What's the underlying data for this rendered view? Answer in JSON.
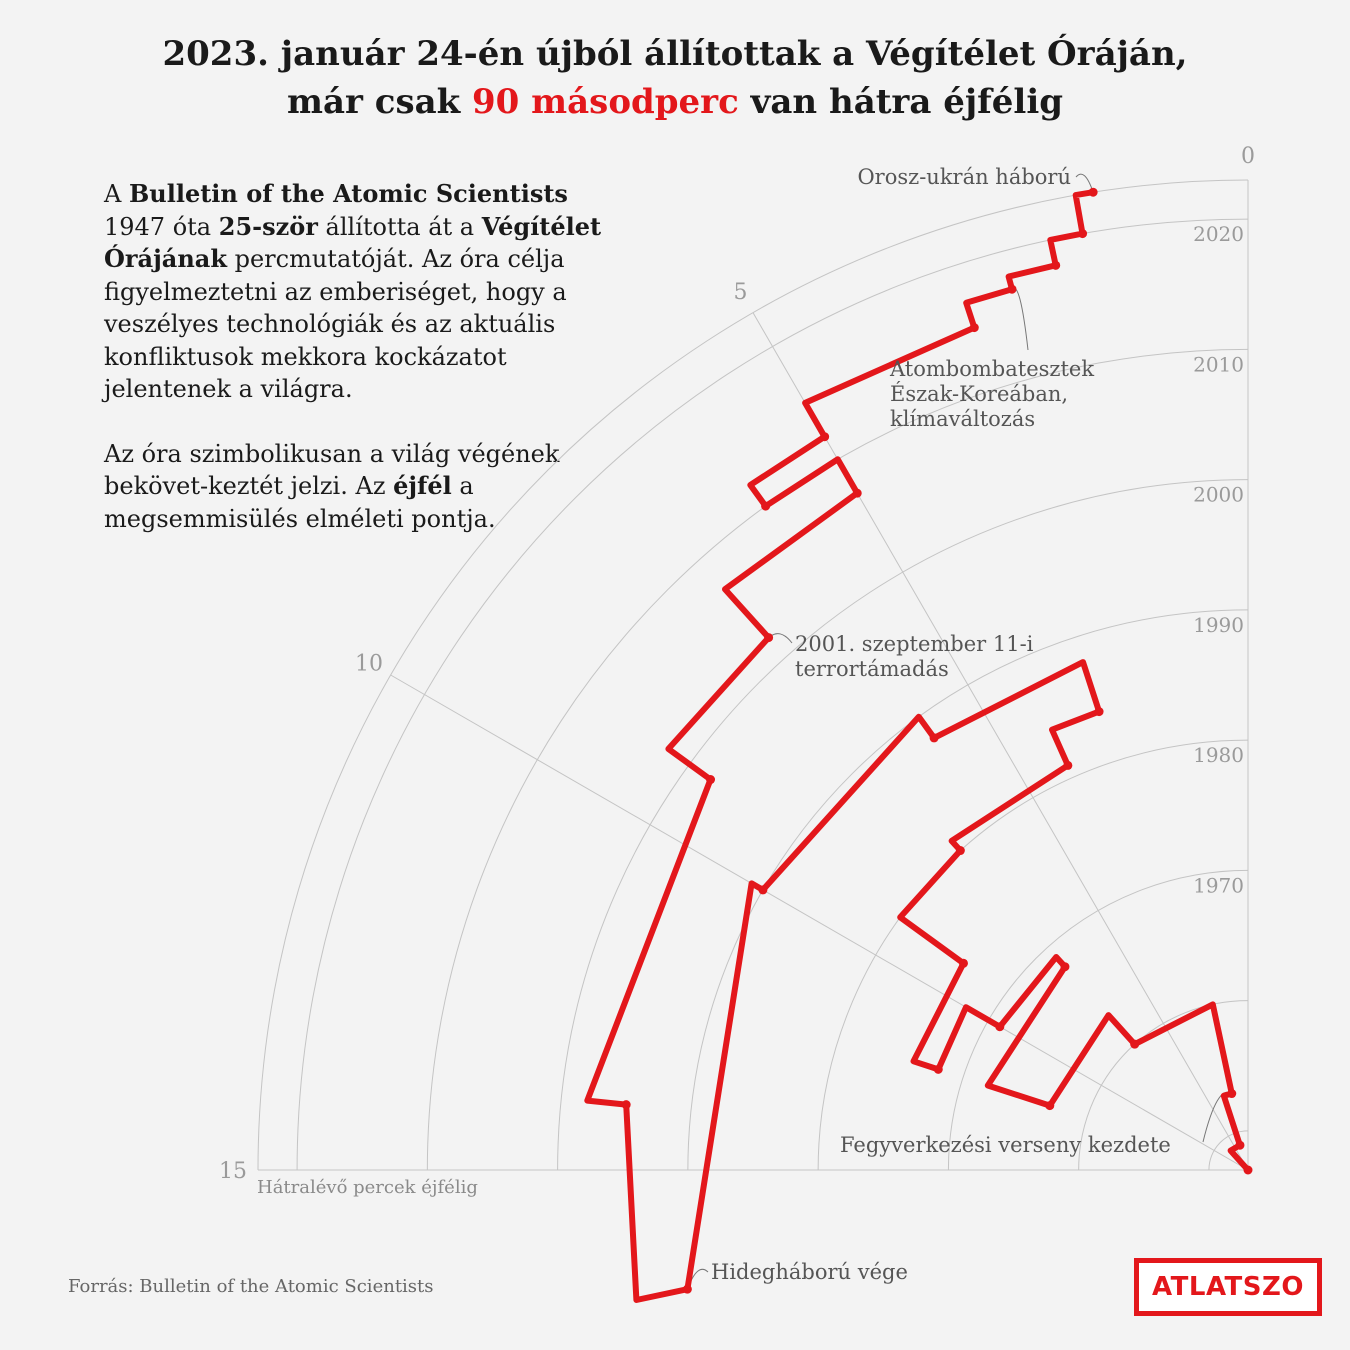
{
  "title": {
    "line1": "2023. január 24-én újból állítottak a Végítélet Óráján,",
    "line2_pre": "már csak ",
    "line2_highlight": "90 másodperc",
    "line2_post": " van hátra éjfélig"
  },
  "intro": {
    "p1_a": "A ",
    "p1_b": "Bulletin of the Atomic Scientists",
    "p1_c": " 1947 óta ",
    "p1_d": "25-ször",
    "p1_e": " állította át a ",
    "p1_f": "Végítélet Órájának",
    "p1_g": " percmutatóját. Az óra célja figyelmeztetni az emberiséget, hogy a veszélyes technológiák és az aktuális konfliktusok mekkora kockázatot jelentenek a világra.",
    "p2_a": "Az óra szimbolikusan a világ végének bekövet-keztét jelzi. Az ",
    "p2_b": "éjfél",
    "p2_c": " a megsemmisülés elméleti pontja."
  },
  "chart_data": {
    "type": "line",
    "projection": "radial",
    "title": "Végítélet Órája",
    "xlabel": "Hátralévő percek éjfélig",
    "ylabel": "",
    "minutes_range": [
      0,
      15
    ],
    "year_range": [
      1947,
      2023
    ],
    "minute_ticks": [
      0,
      5,
      10,
      15
    ],
    "year_tick_labels": [
      "2020",
      "2010",
      "2000",
      "1990",
      "1980",
      "1970"
    ],
    "year_ticks": [
      2020,
      2010,
      2000,
      1990,
      1980,
      1970
    ],
    "grid": true,
    "series": [
      {
        "name": "Hátralévő idő (perc)",
        "x": [
          1947,
          1949,
          1953,
          1960,
          1963,
          1968,
          1969,
          1972,
          1974,
          1980,
          1981,
          1984,
          1988,
          1990,
          1991,
          1995,
          1998,
          2002,
          2007,
          2010,
          2012,
          2015,
          2017,
          2018,
          2020,
          2023
        ],
        "values": [
          7,
          3,
          2,
          7,
          12,
          7,
          10,
          12,
          9,
          7,
          4,
          3,
          6,
          10,
          17,
          14,
          9,
          7,
          5,
          6,
          5,
          3,
          2.5,
          2,
          1.67,
          1.5
        ]
      }
    ]
  },
  "annotations": {
    "orosz": "Orosz-ukrán háború",
    "atom_1": "Atombombatesztek",
    "atom_2": "Észak-Koreában,",
    "atom_3": "klímaváltozás",
    "sept_1": "2001. szeptember 11-i",
    "sept_2": "terrortámadás",
    "fegyver": "Fegyverkezési verseny kezdete",
    "hideg": "Hidegháború vége"
  },
  "source": "Forrás: Bulletin of the Atomic Scientists",
  "logo": "ATLATSZO",
  "colors": {
    "accent": "#e3171b",
    "grid": "#c4c4c4",
    "background": "#f3f3f3"
  }
}
